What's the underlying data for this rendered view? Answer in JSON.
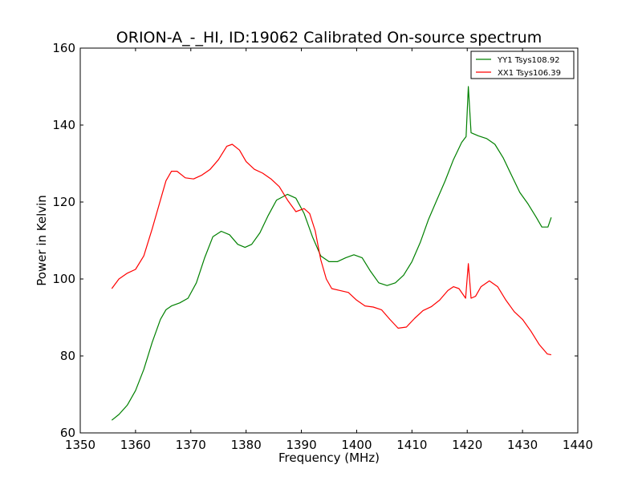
{
  "chart_data": {
    "type": "line",
    "title": "ORION-A_-_HI, ID:19062 Calibrated On-source spectrum",
    "xlabel": "Frequency (MHz)",
    "ylabel": "Power in Kelvin",
    "xlim": [
      1350,
      1440
    ],
    "ylim": [
      60,
      160
    ],
    "x_ticks": [
      1350,
      1360,
      1370,
      1380,
      1390,
      1400,
      1410,
      1420,
      1430,
      1440
    ],
    "y_ticks": [
      60,
      80,
      100,
      120,
      140,
      160
    ],
    "grid": false,
    "legend_position": "top-right",
    "series": [
      {
        "name": "YY1 Tsys108.92",
        "color": "#008000",
        "points": [
          [
            1355.7,
            63.3
          ],
          [
            1357.0,
            64.8
          ],
          [
            1358.5,
            67.2
          ],
          [
            1360.0,
            71.0
          ],
          [
            1361.5,
            76.5
          ],
          [
            1363.0,
            83.5
          ],
          [
            1364.5,
            89.5
          ],
          [
            1365.5,
            92.0
          ],
          [
            1366.5,
            93.0
          ],
          [
            1368.0,
            93.8
          ],
          [
            1369.5,
            95.0
          ],
          [
            1371.0,
            99.0
          ],
          [
            1372.5,
            105.5
          ],
          [
            1374.0,
            111.0
          ],
          [
            1375.5,
            112.4
          ],
          [
            1377.0,
            111.5
          ],
          [
            1378.5,
            109.0
          ],
          [
            1379.8,
            108.2
          ],
          [
            1381.0,
            109.0
          ],
          [
            1382.5,
            112.0
          ],
          [
            1384.0,
            116.5
          ],
          [
            1385.5,
            120.5
          ],
          [
            1387.5,
            122.0
          ],
          [
            1389.0,
            121.0
          ],
          [
            1390.5,
            117.0
          ],
          [
            1392.0,
            111.0
          ],
          [
            1393.5,
            106.0
          ],
          [
            1395.0,
            104.5
          ],
          [
            1396.5,
            104.5
          ],
          [
            1398.0,
            105.5
          ],
          [
            1399.5,
            106.3
          ],
          [
            1401.0,
            105.5
          ],
          [
            1402.5,
            102.0
          ],
          [
            1404.0,
            99.0
          ],
          [
            1405.5,
            98.3
          ],
          [
            1407.0,
            99.0
          ],
          [
            1408.5,
            101.0
          ],
          [
            1410.0,
            104.5
          ],
          [
            1411.5,
            109.5
          ],
          [
            1413.0,
            115.5
          ],
          [
            1414.5,
            120.5
          ],
          [
            1416.0,
            125.5
          ],
          [
            1417.5,
            131.0
          ],
          [
            1419.0,
            135.5
          ],
          [
            1419.8,
            137.0
          ],
          [
            1420.2,
            150.0
          ],
          [
            1420.7,
            138.0
          ],
          [
            1422.0,
            137.2
          ],
          [
            1423.5,
            136.5
          ],
          [
            1425.0,
            135.0
          ],
          [
            1426.5,
            131.5
          ],
          [
            1428.0,
            127.0
          ],
          [
            1429.5,
            122.5
          ],
          [
            1431.0,
            119.5
          ],
          [
            1432.5,
            116.0
          ],
          [
            1433.5,
            113.5
          ],
          [
            1434.6,
            113.5
          ],
          [
            1435.2,
            116.0
          ]
        ]
      },
      {
        "name": "XX1 Tsys106.39",
        "color": "#ff0000",
        "points": [
          [
            1355.7,
            97.5
          ],
          [
            1357.0,
            100.0
          ],
          [
            1358.5,
            101.5
          ],
          [
            1360.0,
            102.5
          ],
          [
            1361.5,
            106.0
          ],
          [
            1363.0,
            113.0
          ],
          [
            1364.5,
            120.5
          ],
          [
            1365.5,
            125.5
          ],
          [
            1366.5,
            128.0
          ],
          [
            1367.5,
            128.0
          ],
          [
            1369.0,
            126.3
          ],
          [
            1370.5,
            126.0
          ],
          [
            1372.0,
            127.0
          ],
          [
            1373.5,
            128.5
          ],
          [
            1375.0,
            131.0
          ],
          [
            1376.5,
            134.5
          ],
          [
            1377.5,
            135.0
          ],
          [
            1378.8,
            133.5
          ],
          [
            1380.0,
            130.5
          ],
          [
            1381.5,
            128.5
          ],
          [
            1383.0,
            127.5
          ],
          [
            1384.5,
            126.0
          ],
          [
            1386.0,
            124.0
          ],
          [
            1387.5,
            120.5
          ],
          [
            1389.0,
            117.5
          ],
          [
            1390.5,
            118.3
          ],
          [
            1391.5,
            117.0
          ],
          [
            1392.5,
            112.5
          ],
          [
            1393.5,
            105.0
          ],
          [
            1394.5,
            100.0
          ],
          [
            1395.5,
            97.5
          ],
          [
            1397.0,
            97.0
          ],
          [
            1398.5,
            96.5
          ],
          [
            1400.0,
            94.5
          ],
          [
            1401.5,
            93.0
          ],
          [
            1403.0,
            92.7
          ],
          [
            1404.5,
            92.0
          ],
          [
            1406.0,
            89.5
          ],
          [
            1407.5,
            87.2
          ],
          [
            1409.0,
            87.5
          ],
          [
            1410.5,
            89.8
          ],
          [
            1412.0,
            91.8
          ],
          [
            1413.5,
            92.8
          ],
          [
            1415.0,
            94.5
          ],
          [
            1416.5,
            97.0
          ],
          [
            1417.5,
            98.0
          ],
          [
            1418.5,
            97.5
          ],
          [
            1419.7,
            95.0
          ],
          [
            1420.2,
            104.0
          ],
          [
            1420.7,
            95.0
          ],
          [
            1421.5,
            95.5
          ],
          [
            1422.5,
            98.0
          ],
          [
            1424.0,
            99.5
          ],
          [
            1425.5,
            98.0
          ],
          [
            1427.0,
            94.5
          ],
          [
            1428.5,
            91.5
          ],
          [
            1430.0,
            89.5
          ],
          [
            1431.5,
            86.5
          ],
          [
            1433.0,
            83.0
          ],
          [
            1434.5,
            80.5
          ],
          [
            1435.2,
            80.3
          ]
        ]
      }
    ]
  }
}
